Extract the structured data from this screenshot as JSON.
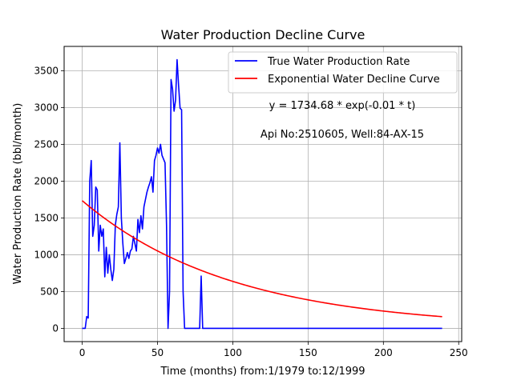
{
  "chart_data": {
    "type": "line",
    "title": "Water Production Decline Curve",
    "xlabel": "Time (months) from:1/1979 to:12/1999",
    "ylabel": "Water Production Rate (bbl/month)",
    "xlim": [
      -12,
      252
    ],
    "ylim": [
      -180,
      3830
    ],
    "xticks": [
      0,
      50,
      100,
      150,
      200,
      250
    ],
    "yticks": [
      0,
      500,
      1000,
      1500,
      2000,
      2500,
      3000,
      3500
    ],
    "grid": true,
    "legend_position": "top-right",
    "annotations": [
      "y = 1734.68 * exp(-0.01 * t)",
      "Api No:2510605, Well:84-AX-15"
    ],
    "series": [
      {
        "name": "True Water Production Rate",
        "color": "#0000ff",
        "points": [
          [
            0,
            0
          ],
          [
            1,
            0
          ],
          [
            2,
            0
          ],
          [
            3,
            160
          ],
          [
            4,
            140
          ],
          [
            5,
            2000
          ],
          [
            6,
            2280
          ],
          [
            7,
            1250
          ],
          [
            8,
            1400
          ],
          [
            9,
            1920
          ],
          [
            10,
            1880
          ],
          [
            11,
            1050
          ],
          [
            12,
            1400
          ],
          [
            13,
            1250
          ],
          [
            14,
            1350
          ],
          [
            15,
            700
          ],
          [
            16,
            1100
          ],
          [
            17,
            750
          ],
          [
            18,
            1000
          ],
          [
            19,
            800
          ],
          [
            20,
            650
          ],
          [
            21,
            800
          ],
          [
            22,
            1400
          ],
          [
            23,
            1550
          ],
          [
            24,
            1650
          ],
          [
            25,
            2520
          ],
          [
            26,
            1500
          ],
          [
            27,
            1150
          ],
          [
            28,
            880
          ],
          [
            29,
            950
          ],
          [
            30,
            1030
          ],
          [
            31,
            950
          ],
          [
            32,
            1050
          ],
          [
            33,
            1080
          ],
          [
            34,
            1250
          ],
          [
            35,
            1150
          ],
          [
            36,
            1050
          ],
          [
            37,
            1480
          ],
          [
            38,
            1300
          ],
          [
            39,
            1530
          ],
          [
            40,
            1350
          ],
          [
            41,
            1650
          ],
          [
            42,
            1750
          ],
          [
            43,
            1850
          ],
          [
            44,
            1920
          ],
          [
            45,
            1980
          ],
          [
            46,
            2060
          ],
          [
            47,
            1850
          ],
          [
            48,
            2280
          ],
          [
            49,
            2350
          ],
          [
            50,
            2450
          ],
          [
            51,
            2380
          ],
          [
            52,
            2500
          ],
          [
            53,
            2350
          ],
          [
            54,
            2300
          ],
          [
            55,
            2250
          ],
          [
            56,
            1400
          ],
          [
            57,
            0
          ],
          [
            58,
            500
          ],
          [
            59,
            3380
          ],
          [
            60,
            3250
          ],
          [
            61,
            2950
          ],
          [
            62,
            3100
          ],
          [
            63,
            3650
          ],
          [
            64,
            3300
          ],
          [
            65,
            2990
          ],
          [
            66,
            2970
          ],
          [
            67,
            500
          ],
          [
            68,
            0
          ],
          [
            75,
            0
          ],
          [
            78,
            0
          ],
          [
            79,
            710
          ],
          [
            80,
            0
          ],
          [
            100,
            0
          ],
          [
            150,
            0
          ],
          [
            200,
            0
          ],
          [
            239,
            0
          ]
        ]
      },
      {
        "name": "Exponential Water Decline Curve",
        "color": "#ff0000",
        "model": {
          "a": 1734.68,
          "b": 0.01
        },
        "x_range": [
          0,
          239
        ]
      }
    ]
  }
}
